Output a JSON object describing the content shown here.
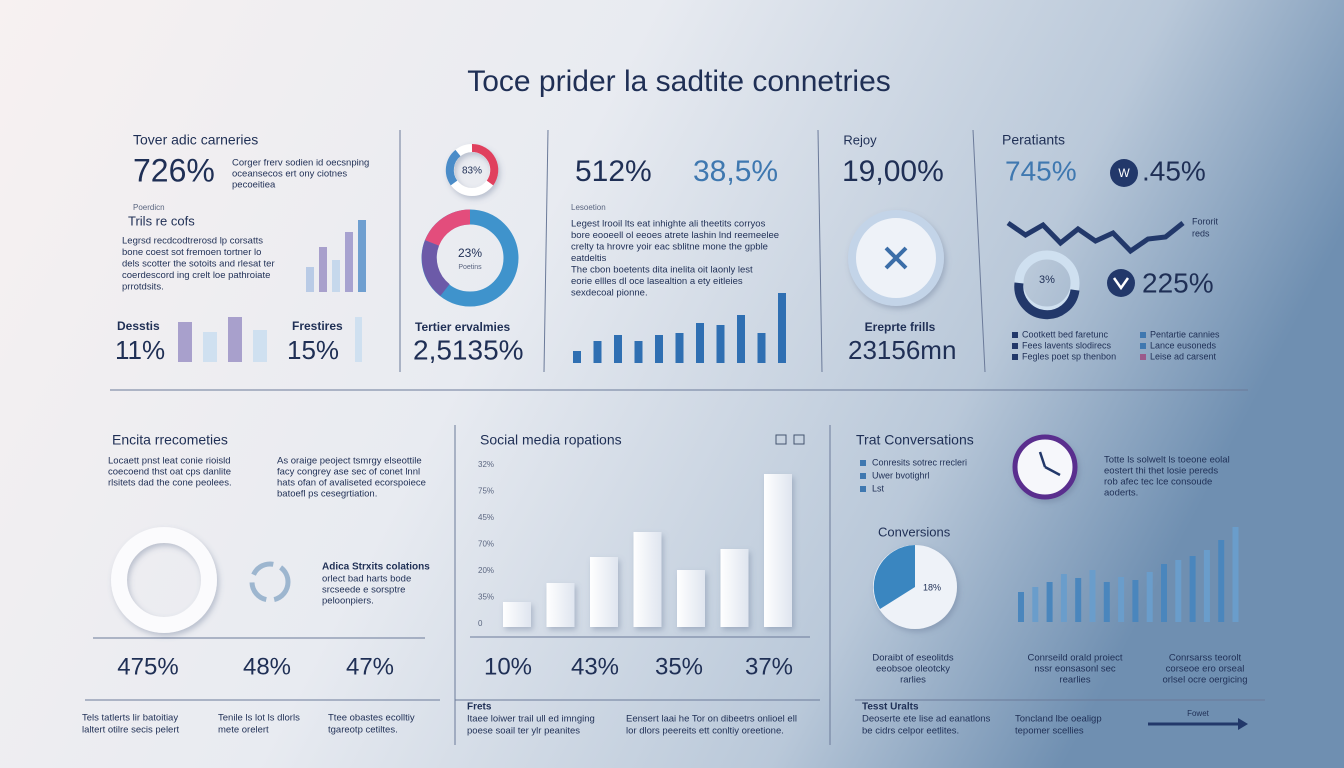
{
  "title": "Toce prider la sadtite connetries",
  "top": {
    "p1": {
      "title": "Tover adic carneries",
      "stat": "726%",
      "note": [
        "Corger frerv sodien id oecsnping",
        "oceansecos ert ony ciotnes",
        "pecoeitiea"
      ],
      "small": "Poerdicn",
      "sub": "Trils re cofs",
      "body": [
        "Legrsd recdcodtrerosd lp corsatts",
        "bone coest sot fremoen tortner lo",
        "dels scotter the sotoits and rlesat ter",
        "coerdescord ing crelt loe pathroiate",
        "prrotdsits."
      ],
      "bars": [
        25,
        45,
        32,
        60,
        72
      ],
      "stat_a": {
        "label": "Desstis",
        "value": "11%"
      },
      "bars_a": [
        40,
        30,
        45,
        32
      ],
      "stat_b": {
        "label": "Frestires",
        "value": "15%"
      },
      "bars_b": [
        45
      ]
    },
    "p2": {
      "ring_label": "83%",
      "donut_label": "23%",
      "donut_sub": "Poetins",
      "stat_label": "Tertier ervalmies",
      "stat": "2,5135%"
    },
    "p3": {
      "stat_a": "512%",
      "stat_b": "38,5%",
      "small": "Lesoetion",
      "body": [
        "Legest lrooil lts eat inhighte ali theetits corryos",
        "bore eooeell ol eeoes atrete lashin lnd reemeelee",
        "crelty ta hrovre yoir eac sblitne mone the gpble",
        "eatdeltis",
        "The cbon boetents dita inelita oit laonly lest",
        "eorie ellles dl oce lasealtion a ety eitleies",
        "sexdecoal pionne."
      ],
      "bars": [
        12,
        22,
        28,
        22,
        28,
        30,
        40,
        38,
        48,
        30,
        70
      ]
    },
    "p4": {
      "label": "Rejoy",
      "stat": "19,00%",
      "label_b": "Ereprte frills",
      "stat_b": "23156mn"
    },
    "p5": {
      "title": "Peratiants",
      "stat_a": "745%",
      "badge": "W",
      "stat_b": ".45%",
      "line": [
        62,
        50,
        60,
        42,
        56,
        44,
        52,
        34,
        46,
        48,
        62
      ],
      "line_label": [
        "Fororit",
        "reds"
      ],
      "ring_label": "3%",
      "stat_c": "225%",
      "legend": [
        "Cootkett bed faretunc",
        "Fees lavents slodirecs",
        "Fegles poet sp thenbon",
        "Pentartie cannies",
        "Lance eusoneds",
        "Leise ad carsent"
      ]
    }
  },
  "bottom": {
    "left": {
      "title": "Encita rrecometies",
      "para_a": [
        "Locaett pnst leat conie rioisld",
        "coecoend thst oat cps danlite",
        "rlsitets dad the cone peolees."
      ],
      "para_b": [
        "As oraige peoject tsmrgy elseottile",
        "facy congrey ase sec of conet lnnl",
        "hats ofan of avaliseted ecorspoiece",
        "batoefl ps cesegrtiation."
      ],
      "heading": "Adica Strxits colations",
      "para_c": [
        "orlect bad harts bode",
        "srcseede e sorsptre",
        "peloonpiers."
      ],
      "stats": [
        "475%",
        "48%",
        "47%"
      ],
      "foot": [
        [
          "Tels tatlerts lir batoitiay",
          "laltert otilre secis pelert"
        ],
        [
          "Tenile ls lot ls dlorls",
          "mete orelert"
        ],
        [
          "Ttee obastes ecolltiy",
          "tgareotp cetiltes."
        ]
      ]
    },
    "middle": {
      "title": "Social media ropations",
      "axis_labels": [
        "32%",
        "75%",
        "45%",
        "70%",
        "20%",
        "35%",
        "0"
      ],
      "bars": [
        25,
        44,
        70,
        95,
        57,
        78,
        153
      ],
      "stats": [
        "10%",
        "43%",
        "35%",
        "37%"
      ],
      "heading": "Frets",
      "foot_a": [
        "Itaee loiwer trail ull ed imnging",
        "poese soail ter ylr peanites"
      ],
      "foot_b": [
        "Eensert laai he Tor on dibeetrs onlioel ell",
        "lor dlors peereits ett conltiy oreetione."
      ]
    },
    "right": {
      "title": "Trat Conversations",
      "legend": [
        "Conresits sotrec rrecleri",
        "Uwer bvotighrl",
        "Lst"
      ],
      "text": [
        "Totte ls solwelt ls toeone eolal",
        "eostert thi thet losie pereds",
        "rob afec tec lce consoude",
        "aoderts."
      ],
      "sub": "Conversions",
      "pie_label": "18%",
      "bars": [
        30,
        35,
        40,
        48,
        44,
        52,
        40,
        45,
        42,
        50,
        58,
        62,
        66,
        72,
        82,
        95
      ],
      "captions": [
        [
          "Doraibt of eseolitds",
          "eeobsoe oleotcky",
          "rarlies"
        ],
        [
          "Conrseild orald proiect",
          "nssr eonsasonl sec",
          "rearlies"
        ],
        [
          "Conrsarss teorolt",
          "corseoe ero orseal",
          "orlsel ocre oergicing"
        ]
      ],
      "heading": "Tesst Uralts",
      "foot_a": [
        "Deoserte ete lise ad eanatlons",
        "be cidrs celpor eetlites."
      ],
      "foot_b": [
        "Toncland lbe oealigp",
        "tepomer scellies"
      ],
      "arrow_label": "Fowet"
    }
  }
}
